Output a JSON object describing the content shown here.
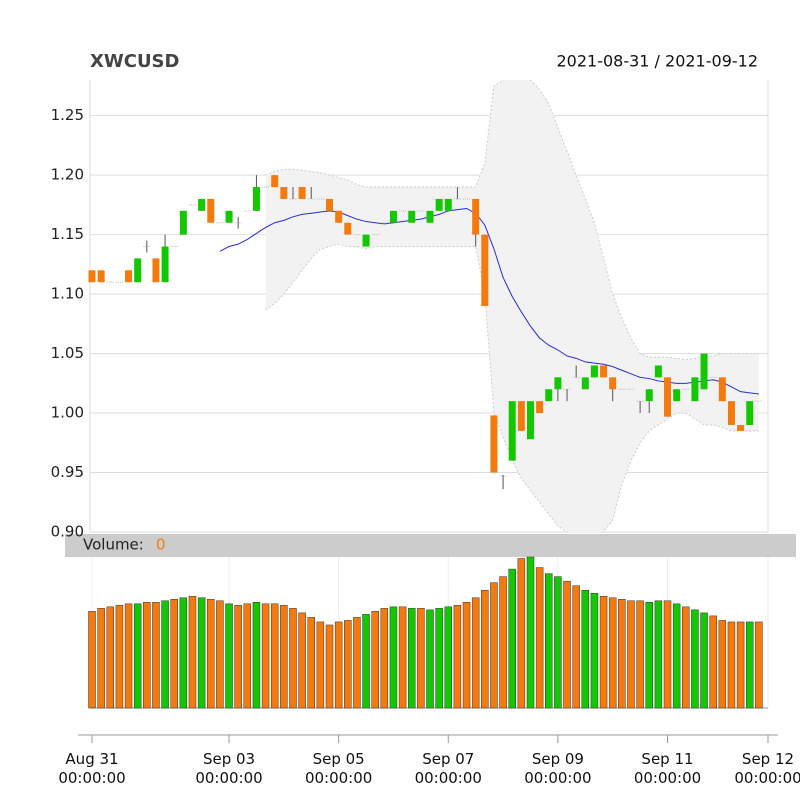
{
  "chart_data": {
    "type": "candlestick",
    "title": "XWCUSD",
    "subtitle": "2021-08-31 / 2021-09-12",
    "up_color": "#13c800",
    "down_color": "#f57a0e",
    "ma_color": "#2a2ad8",
    "band_color": "#f2f2f2",
    "ylim": [
      0.9,
      1.28
    ],
    "yticks": [
      {
        "value": 0.9,
        "label": "0.90"
      },
      0.95,
      {
        "value": 1.0,
        "label": "1.00"
      },
      1.05,
      {
        "value": 1.1,
        "label": "1.10"
      },
      1.15,
      {
        "value": 1.2,
        "label": "1.20"
      },
      1.25
    ],
    "grid": true,
    "xlim": [
      0,
      74
    ],
    "xticks": [
      {
        "value": 0,
        "label": "Aug 31\n00:00:00"
      },
      {
        "value": 15,
        "label": "Sep 03\n00:00:00"
      },
      {
        "value": 27,
        "label": "Sep 05\n00:00:00"
      },
      {
        "value": 39,
        "label": "Sep 07\n00:00:00"
      },
      {
        "value": 51,
        "label": "Sep 09\n00:00:00"
      },
      {
        "value": 63,
        "label": "Sep 11\n00:00:00"
      },
      {
        "value": 74,
        "label": "Sep 12\n00:00:00"
      }
    ],
    "open": [
      1.12,
      1.12,
      1.11,
      1.11,
      1.12,
      1.11,
      1.14,
      1.13,
      1.11,
      1.14,
      1.15,
      1.175,
      1.17,
      1.18,
      1.16,
      1.16,
      1.16,
      1.17,
      1.17,
      1.19,
      1.2,
      1.19,
      1.18,
      1.19,
      1.18,
      1.18,
      1.18,
      1.17,
      1.16,
      1.15,
      1.14,
      1.15,
      1.16,
      1.16,
      1.17,
      1.16,
      1.17,
      1.16,
      1.17,
      1.17,
      1.18,
      1.18,
      1.18,
      1.15,
      0.998,
      0.947,
      0.96,
      1.01,
      0.978,
      1.01,
      1.01,
      1.02,
      1.02,
      1.03,
      1.02,
      1.03,
      1.04,
      1.03,
      1.02,
      1.02,
      1.01,
      1.01,
      1.03,
      1.03,
      1.01,
      1.02,
      1.01,
      1.02,
      1.03,
      1.03,
      1.01,
      0.99,
      0.99,
      1.01
    ],
    "high": [
      1.12,
      1.12,
      1.11,
      1.11,
      1.12,
      1.13,
      1.145,
      1.13,
      1.15,
      1.14,
      1.17,
      1.175,
      1.18,
      1.18,
      1.16,
      1.17,
      1.165,
      1.17,
      1.2,
      1.19,
      1.2,
      1.19,
      1.19,
      1.19,
      1.19,
      1.18,
      1.18,
      1.17,
      1.16,
      1.15,
      1.15,
      1.15,
      1.16,
      1.17,
      1.17,
      1.17,
      1.17,
      1.17,
      1.18,
      1.18,
      1.19,
      1.18,
      1.18,
      1.15,
      0.998,
      0.948,
      1.01,
      1.01,
      1.01,
      1.01,
      1.02,
      1.03,
      1.02,
      1.04,
      1.03,
      1.04,
      1.04,
      1.03,
      1.02,
      1.02,
      1.01,
      1.02,
      1.04,
      1.03,
      1.02,
      1.02,
      1.03,
      1.05,
      1.03,
      1.03,
      1.01,
      0.99,
      1.01,
      1.01
    ],
    "low": [
      1.11,
      1.11,
      1.11,
      1.11,
      1.11,
      1.11,
      1.135,
      1.11,
      1.11,
      1.14,
      1.15,
      1.175,
      1.17,
      1.16,
      1.16,
      1.16,
      1.155,
      1.17,
      1.17,
      1.19,
      1.19,
      1.18,
      1.18,
      1.18,
      1.18,
      1.18,
      1.17,
      1.16,
      1.15,
      1.15,
      1.14,
      1.15,
      1.16,
      1.16,
      1.17,
      1.16,
      1.17,
      1.16,
      1.17,
      1.17,
      1.18,
      1.18,
      1.14,
      1.09,
      0.95,
      0.936,
      0.96,
      0.985,
      0.978,
      1.0,
      1.01,
      1.01,
      1.01,
      1.03,
      1.02,
      1.03,
      1.03,
      1.01,
      1.02,
      1.02,
      1.0,
      1.0,
      1.03,
      0.997,
      1.01,
      1.02,
      1.01,
      1.02,
      1.03,
      1.01,
      0.99,
      0.985,
      0.99,
      1.01
    ],
    "close": [
      1.11,
      1.11,
      1.11,
      1.11,
      1.11,
      1.13,
      1.14,
      1.11,
      1.14,
      1.14,
      1.17,
      1.175,
      1.18,
      1.16,
      1.16,
      1.17,
      1.16,
      1.17,
      1.19,
      1.19,
      1.19,
      1.18,
      1.18,
      1.18,
      1.18,
      1.18,
      1.17,
      1.16,
      1.15,
      1.15,
      1.15,
      1.15,
      1.16,
      1.17,
      1.17,
      1.17,
      1.17,
      1.17,
      1.18,
      1.18,
      1.18,
      1.18,
      1.15,
      1.09,
      0.95,
      0.947,
      1.01,
      0.985,
      1.01,
      1.0,
      1.02,
      1.03,
      1.02,
      1.03,
      1.03,
      1.04,
      1.03,
      1.02,
      1.02,
      1.02,
      1.01,
      1.02,
      1.04,
      0.997,
      1.02,
      1.02,
      1.03,
      1.05,
      1.03,
      1.01,
      0.99,
      0.985,
      1.01,
      1.01
    ],
    "ma": [
      null,
      null,
      null,
      null,
      null,
      null,
      null,
      null,
      null,
      null,
      null,
      null,
      null,
      null,
      1.136,
      1.14,
      1.142,
      1.146,
      1.151,
      1.156,
      1.16,
      1.162,
      1.165,
      1.167,
      1.168,
      1.169,
      1.17,
      1.169,
      1.166,
      1.163,
      1.161,
      1.16,
      1.159,
      1.16,
      1.161,
      1.162,
      1.163,
      1.165,
      1.167,
      1.17,
      1.171,
      1.172,
      1.168,
      1.158,
      1.138,
      1.114,
      1.098,
      1.085,
      1.073,
      1.063,
      1.057,
      1.053,
      1.048,
      1.046,
      1.043,
      1.042,
      1.041,
      1.039,
      1.036,
      1.033,
      1.03,
      1.029,
      1.027,
      1.026,
      1.025,
      1.025,
      1.026,
      1.027,
      1.028,
      1.026,
      1.022,
      1.018,
      1.017,
      1.016
    ],
    "upper": [
      null,
      null,
      null,
      null,
      null,
      null,
      null,
      null,
      null,
      null,
      null,
      null,
      null,
      null,
      null,
      null,
      null,
      null,
      null,
      1.2,
      1.203,
      1.205,
      1.205,
      1.204,
      1.203,
      1.202,
      1.2,
      1.198,
      1.196,
      1.192,
      1.19,
      1.19,
      1.19,
      1.19,
      1.19,
      1.19,
      1.19,
      1.19,
      1.19,
      1.19,
      1.19,
      1.19,
      1.19,
      1.21,
      1.275,
      1.28,
      1.282,
      1.283,
      1.28,
      1.272,
      1.26,
      1.24,
      1.22,
      1.2,
      1.18,
      1.16,
      1.13,
      1.1,
      1.08,
      1.063,
      1.05,
      1.047,
      1.047,
      1.047,
      1.046,
      1.045,
      1.046,
      1.047,
      1.048,
      1.05,
      1.05,
      1.05,
      1.05,
      1.05
    ],
    "lower": [
      null,
      null,
      null,
      null,
      null,
      null,
      null,
      null,
      null,
      null,
      null,
      null,
      null,
      null,
      null,
      null,
      null,
      null,
      null,
      1.087,
      1.092,
      1.1,
      1.11,
      1.12,
      1.13,
      1.138,
      1.14,
      1.142,
      1.14,
      1.14,
      1.138,
      1.14,
      1.14,
      1.14,
      1.14,
      1.14,
      1.14,
      1.14,
      1.14,
      1.14,
      1.14,
      1.14,
      1.14,
      1.1,
      1.0,
      0.98,
      0.96,
      0.945,
      0.935,
      0.925,
      0.915,
      0.905,
      0.9,
      0.898,
      0.897,
      0.898,
      0.9,
      0.91,
      0.94,
      0.96,
      0.975,
      0.985,
      0.99,
      0.995,
      1.0,
      1.0,
      0.995,
      0.99,
      0.99,
      0.988,
      0.985,
      0.985,
      0.985,
      0.985
    ],
    "volume_label": "Volume:",
    "volume_readout": 0,
    "volume_ylim": [
      0,
      100
    ],
    "volume": [
      64,
      66,
      67,
      68,
      69,
      69,
      70,
      70,
      71,
      72,
      73,
      74,
      73,
      72,
      71,
      69,
      68,
      69,
      70,
      69,
      69,
      68,
      66,
      63,
      60,
      57,
      55,
      57,
      58,
      60,
      62,
      64,
      66,
      67,
      67,
      66,
      66,
      65,
      66,
      67,
      68,
      70,
      73,
      78,
      83,
      87,
      92,
      99,
      100,
      93,
      89,
      87,
      84,
      81,
      78,
      76,
      74,
      73,
      72,
      71,
      71,
      70,
      71,
      71,
      69,
      67,
      65,
      63,
      61,
      58,
      57,
      57,
      57,
      57
    ]
  }
}
